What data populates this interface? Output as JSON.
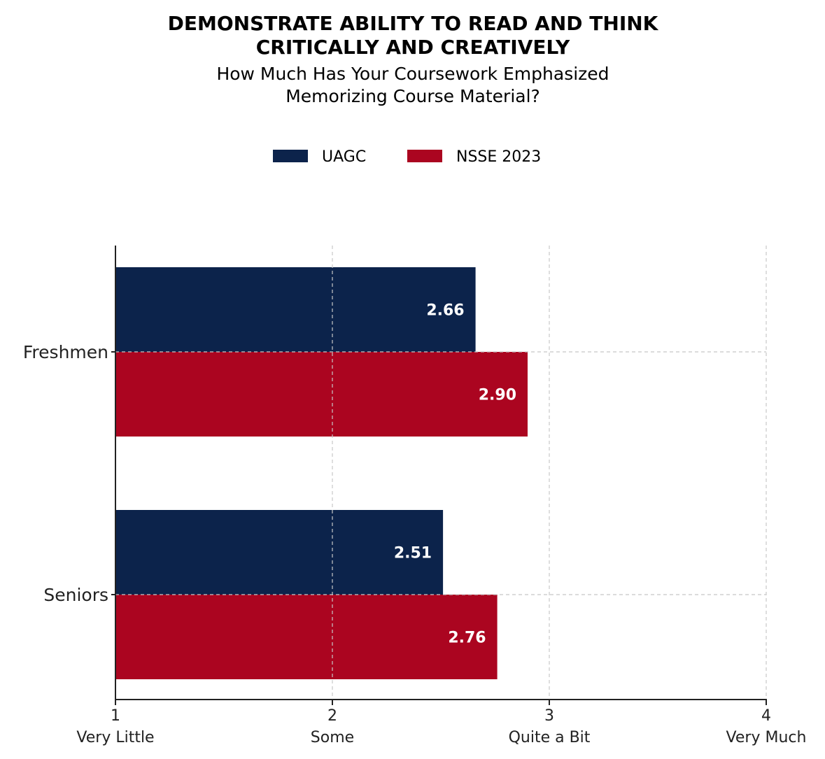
{
  "chart_data": {
    "type": "bar",
    "orientation": "horizontal",
    "title_lines": [
      "DEMONSTRATE ABILITY TO READ AND THINK",
      "CRITICALLY AND CREATIVELY"
    ],
    "subtitle_lines": [
      "How Much Has Your Coursework Emphasized",
      "Memorizing Course Material?"
    ],
    "categories": [
      "Freshmen",
      "Seniors"
    ],
    "series": [
      {
        "name": "UAGC",
        "color": "#0c234b",
        "values": [
          2.66,
          2.51
        ],
        "labels": [
          "2.66",
          "2.51"
        ]
      },
      {
        "name": "NSSE 2023",
        "color": "#ab0520",
        "values": [
          2.9,
          2.76
        ],
        "labels": [
          "2.90",
          "2.76"
        ]
      }
    ],
    "xlim": [
      1,
      4
    ],
    "xticks": [
      {
        "value": 1,
        "number": "1",
        "text": "Very Little"
      },
      {
        "value": 2,
        "number": "2",
        "text": "Some"
      },
      {
        "value": 3,
        "number": "3",
        "text": "Quite a Bit"
      },
      {
        "value": 4,
        "number": "4",
        "text": "Very Much"
      }
    ],
    "grid": true,
    "legend_position": "top-center"
  }
}
